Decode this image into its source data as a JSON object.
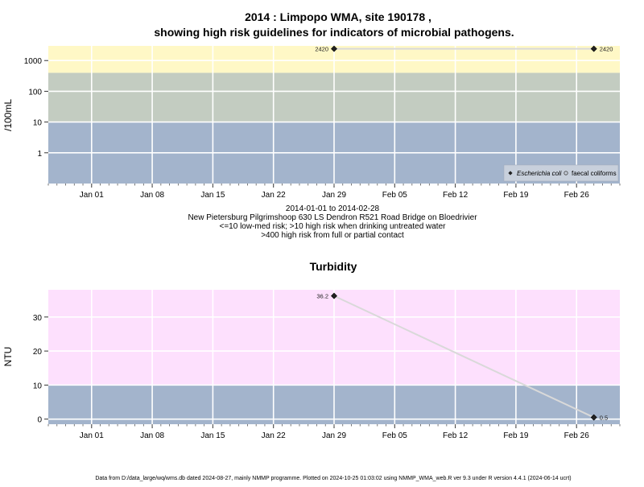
{
  "chart_data": [
    {
      "type": "line",
      "title": "2014 : Limpopo WMA, site 190178 ,",
      "subtitle": "showing high risk guidelines for indicators of microbial pathogens.",
      "ylabel": "/100mL",
      "yscale": "log",
      "ylim": [
        0.1,
        3000
      ],
      "yticks": [
        1,
        10,
        100,
        1000
      ],
      "ytick_labels": [
        "1",
        "10",
        "100",
        "1000"
      ],
      "xlim": [
        "2013-12-27",
        "2014-03-03"
      ],
      "xticks": [
        "2014-01-01",
        "2014-01-08",
        "2014-01-15",
        "2014-01-22",
        "2014-01-29",
        "2014-02-05",
        "2014-02-12",
        "2014-02-19",
        "2014-02-26"
      ],
      "xtick_labels": [
        "Jan 01",
        "Jan 08",
        "Jan 15",
        "Jan 22",
        "Jan 29",
        "Feb 05",
        "Feb 12",
        "Feb 19",
        "Feb 26"
      ],
      "grid": true,
      "bands": [
        {
          "from": 0.1,
          "to": 10,
          "color": "#a3b4cc"
        },
        {
          "from": 10,
          "to": 400,
          "color": "#c3ccc1"
        },
        {
          "from": 400,
          "to": 3000,
          "color": "#fff8c6"
        }
      ],
      "series": [
        {
          "name": "Escherichia coli",
          "marker": "filled-diamond",
          "color": "#222222",
          "x": [
            "2014-01-29",
            "2014-02-28"
          ],
          "y": [
            2420,
            2420
          ],
          "labels": [
            "2420",
            "2420"
          ]
        },
        {
          "name": "faecal coliforms",
          "marker": "open-circle",
          "color": "#444444",
          "x": [],
          "y": []
        }
      ],
      "legend_position": "bottom-right",
      "notes": [
        "2014-01-01 to 2014-02-28",
        "New Pietersburg Pilgrimshoop 630 LS Dendron R521 Road Bridge on Bloedrivier",
        "<=10 low-med risk; >10 high risk when drinking untreated water",
        ">400 high risk from full or partial contact"
      ]
    },
    {
      "type": "line",
      "title": "Turbidity",
      "ylabel": "NTU",
      "ylim": [
        -1.5,
        38
      ],
      "yticks": [
        0,
        10,
        20,
        30
      ],
      "ytick_labels": [
        "0",
        "10",
        "20",
        "30"
      ],
      "xlim": [
        "2013-12-27",
        "2014-03-03"
      ],
      "xticks": [
        "2014-01-01",
        "2014-01-08",
        "2014-01-15",
        "2014-01-22",
        "2014-01-29",
        "2014-02-05",
        "2014-02-12",
        "2014-02-19",
        "2014-02-26"
      ],
      "xtick_labels": [
        "Jan 01",
        "Jan 08",
        "Jan 15",
        "Jan 22",
        "Jan 29",
        "Feb 05",
        "Feb 12",
        "Feb 19",
        "Feb 26"
      ],
      "grid": true,
      "bands": [
        {
          "from": -1.5,
          "to": 10,
          "color": "#a3b4cc"
        },
        {
          "from": 10,
          "to": 38,
          "color": "#fde0fd"
        }
      ],
      "series": [
        {
          "name": "Turbidity",
          "marker": "filled-diamond",
          "color": "#222222",
          "x": [
            "2014-01-29",
            "2014-02-28"
          ],
          "y": [
            36.2,
            0.5
          ],
          "labels": [
            "36.2",
            "0.5"
          ]
        }
      ]
    }
  ],
  "footer": "Data from D:/data_large/wq/wms.db dated 2024-08-27, mainly NMMP programme. Plotted on 2024-10-25 01:03:02 using NMMP_WMA_web.R ver 9.3 under R version 4.4.1 (2024-06-14 ucrt)"
}
